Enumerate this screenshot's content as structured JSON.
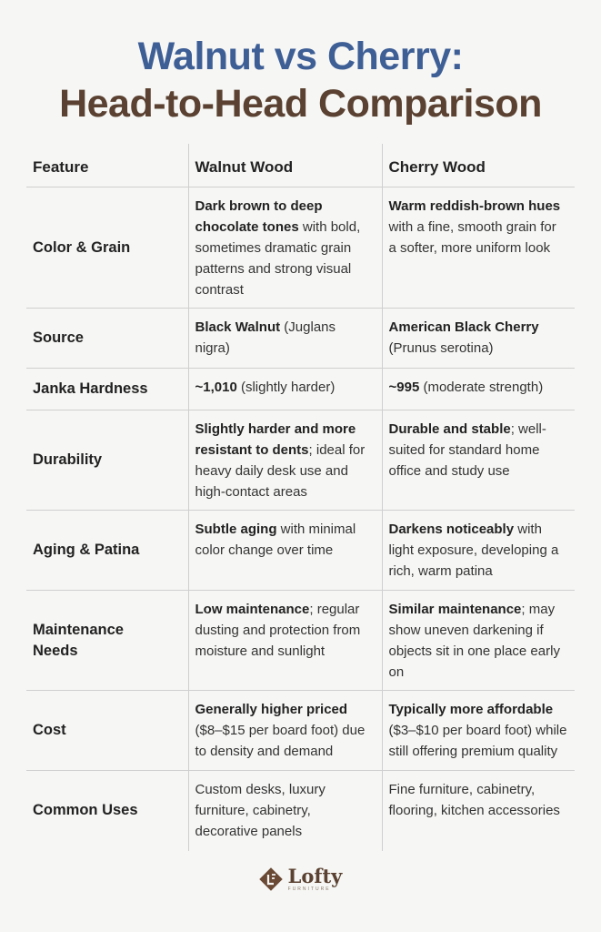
{
  "title": {
    "line1": "Walnut vs Cherry:",
    "line2": "Head-to-Head Comparison"
  },
  "colors": {
    "title_line1": "#3e5f96",
    "title_line2": "#5a4131",
    "divider": "#cfcfcf"
  },
  "table": {
    "headers": [
      "Feature",
      "Walnut Wood",
      "Cherry Wood"
    ],
    "rows": [
      {
        "feature": "Color & Grain",
        "walnut": {
          "bold": "Dark brown to deep chocolate tones",
          "rest": " with bold, sometimes dramatic grain patterns and strong visual contrast"
        },
        "cherry": {
          "bold": "Warm reddish-brown hues",
          "rest": " with a fine, smooth grain for a softer, more uniform look"
        }
      },
      {
        "feature": "Source",
        "walnut": {
          "bold": "Black Walnut",
          "rest": " (Juglans nigra)"
        },
        "cherry": {
          "bold": "American Black Cherry",
          "rest": " (Prunus serotina)"
        }
      },
      {
        "feature": "Janka Hardness",
        "walnut": {
          "bold": "~1,010",
          "rest": " (slightly harder)"
        },
        "cherry": {
          "bold": "~995",
          "rest": " (moderate strength)"
        }
      },
      {
        "feature": "Durability",
        "walnut": {
          "bold": "Slightly harder and more resistant to dents",
          "rest": "; ideal for heavy daily desk use and high-contact areas"
        },
        "cherry": {
          "bold": "Durable and stable",
          "rest": "; well-suited for standard home office and study use"
        }
      },
      {
        "feature": "Aging & Patina",
        "walnut": {
          "bold": "Subtle aging",
          "rest": " with minimal color change over time"
        },
        "cherry": {
          "bold": "Darkens noticeably",
          "rest": " with light exposure, developing a rich, warm patina"
        }
      },
      {
        "feature": "Maintenance Needs",
        "walnut": {
          "bold": "Low maintenance",
          "rest": "; regular dusting and protection from moisture and sunlight"
        },
        "cherry": {
          "bold": "Similar maintenance",
          "rest": "; may show uneven darkening if objects sit in one place early on"
        }
      },
      {
        "feature": "Cost",
        "walnut": {
          "bold": "Generally higher priced",
          "rest": " ($8–$15 per board foot) due to density and demand"
        },
        "cherry": {
          "bold": "Typically more affordable",
          "rest": " ($3–$10 per board foot) while still offering premium quality"
        }
      },
      {
        "feature": "Common Uses",
        "walnut": {
          "bold": "",
          "rest": "Custom desks, luxury furniture, cabinetry, decorative panels"
        },
        "cherry": {
          "bold": "",
          "rest": "Fine furniture, cabinetry, flooring, kitchen accessories"
        }
      }
    ]
  },
  "logo": {
    "word": "Lofty",
    "sub": "FURNITURE",
    "icon": "lofty-diamond-logo-icon"
  }
}
